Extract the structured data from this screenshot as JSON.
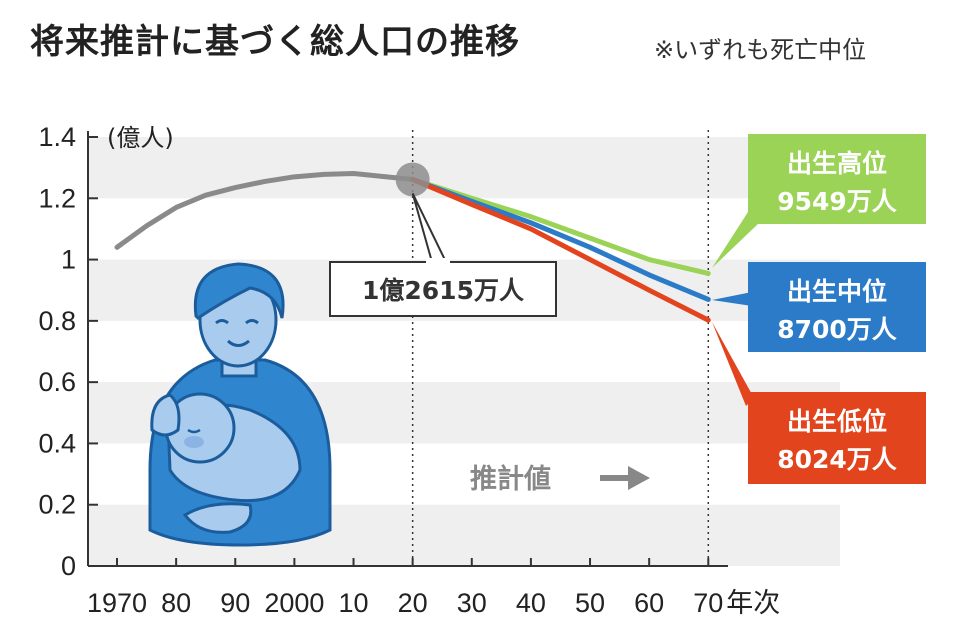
{
  "title": "将来推計に基づく総人口の推移",
  "note": "※いずれも死亡中位",
  "colors": {
    "actual": "#8a8a8a",
    "high": "#9bd357",
    "mid": "#2b7bc8",
    "low": "#e2451e",
    "band": "#efefef",
    "person": "#2f86cf",
    "person_light": "#a9cbed"
  },
  "chart_data": {
    "type": "line",
    "title": "将来推計に基づく総人口の推移",
    "ylabel": "(億人)",
    "xlabel": "年次",
    "ylim": [
      0,
      1.4
    ],
    "xlim": [
      1965,
      2080
    ],
    "yticks": [
      {
        "value": 0,
        "label": "0"
      },
      {
        "value": 0.2,
        "label": "0.2"
      },
      {
        "value": 0.4,
        "label": "0.4"
      },
      {
        "value": 0.6,
        "label": "0.6"
      },
      {
        "value": 0.8,
        "label": "0.8"
      },
      {
        "value": 1.0,
        "label": "1"
      },
      {
        "value": 1.2,
        "label": "1.2"
      },
      {
        "value": 1.4,
        "label": "1.4"
      }
    ],
    "xticks": [
      {
        "value": 1970,
        "label": "1970"
      },
      {
        "value": 1980,
        "label": "80"
      },
      {
        "value": 1990,
        "label": "90"
      },
      {
        "value": 2000,
        "label": "2000"
      },
      {
        "value": 2010,
        "label": "10"
      },
      {
        "value": 2020,
        "label": "20"
      },
      {
        "value": 2030,
        "label": "30"
      },
      {
        "value": 2040,
        "label": "40"
      },
      {
        "value": 2050,
        "label": "50"
      },
      {
        "value": 2060,
        "label": "60"
      },
      {
        "value": 2070,
        "label": "70"
      }
    ],
    "series": [
      {
        "key": "actual",
        "x": [
          1970,
          1975,
          1980,
          1985,
          1990,
          1995,
          2000,
          2005,
          2010,
          2015,
          2020
        ],
        "values": [
          1.04,
          1.11,
          1.17,
          1.21,
          1.235,
          1.255,
          1.27,
          1.278,
          1.281,
          1.271,
          1.2615
        ]
      },
      {
        "key": "high",
        "name": "出生高位",
        "x": [
          2020,
          2030,
          2040,
          2050,
          2060,
          2070
        ],
        "values": [
          1.2615,
          1.2,
          1.14,
          1.07,
          1.0,
          0.9549
        ]
      },
      {
        "key": "mid",
        "name": "出生中位",
        "x": [
          2020,
          2030,
          2040,
          2050,
          2060,
          2070
        ],
        "values": [
          1.2615,
          1.19,
          1.12,
          1.04,
          0.95,
          0.87
        ]
      },
      {
        "key": "low",
        "name": "出生低位",
        "x": [
          2020,
          2030,
          2040,
          2050,
          2060,
          2070
        ],
        "values": [
          1.2615,
          1.18,
          1.1,
          1.0,
          0.9,
          0.8024
        ]
      }
    ],
    "annotations": {
      "point_2020": "1億2615万人",
      "estimate_label": "推計値",
      "high_name": "出生高位",
      "high_value": "9549万人",
      "mid_name": "出生中位",
      "mid_value": "8700万人",
      "low_name": "出生低位",
      "low_value": "8024万人"
    }
  }
}
